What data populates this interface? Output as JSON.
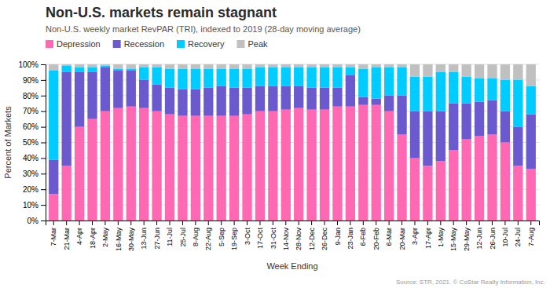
{
  "chart_data": {
    "type": "bar",
    "stacked": true,
    "title": "Non-U.S. markets remain stagnant",
    "subtitle": "Non-U.S. weekly market RevPAR (TRI), indexed to 2019 (28-day moving average)",
    "x_label": "Week Ending",
    "y_label": "Percent of Markets",
    "annotations": [
      "Source: STR, 2021. © CoStar Realty Information, Inc."
    ],
    "categories": [
      "7-Mar",
      "21-Mar",
      "4-Apr",
      "18-Apr",
      "2-May",
      "16-May",
      "30-May",
      "13-Jun",
      "27-Jun",
      "11-Jul",
      "25-Jul",
      "8-Aug",
      "22-Aug",
      "5-Sep",
      "19-Sep",
      "3-Oct",
      "17-Oct",
      "31-Oct",
      "14-Nov",
      "28-Nov",
      "12-Dec",
      "26-Dec",
      "9-Jan",
      "23-Jan",
      "6-Feb",
      "20-Feb",
      "6-Mar",
      "20-Mar",
      "3-Apr",
      "17-Apr",
      "1-May",
      "15-May",
      "29-May",
      "12-Jun",
      "26-Jun",
      "10-Jul",
      "24-Jul",
      "7-Aug"
    ],
    "series": [
      {
        "name": "Depression",
        "color": "#FF69B4",
        "values": [
          17,
          35,
          60,
          65,
          70,
          72,
          73,
          72,
          70,
          68,
          67,
          67,
          67,
          67,
          67,
          68,
          70,
          70,
          71,
          72,
          71,
          71,
          73,
          73,
          74,
          74,
          70,
          55,
          40,
          35,
          38,
          45,
          52,
          54,
          55,
          50,
          35,
          33
        ]
      },
      {
        "name": "Recession",
        "color": "#6A5ACD",
        "values": [
          22,
          60,
          35,
          30,
          28,
          24,
          23,
          18,
          17,
          17,
          17,
          17,
          18,
          19,
          18,
          17,
          16,
          16,
          15,
          14,
          14,
          14,
          12,
          20,
          5,
          4,
          10,
          25,
          30,
          35,
          32,
          30,
          23,
          22,
          22,
          20,
          25,
          35
        ]
      },
      {
        "name": "Recovery",
        "color": "#00CCFF",
        "values": [
          57,
          4,
          3,
          3,
          1,
          1,
          1,
          8,
          11,
          12,
          13,
          13,
          12,
          11,
          12,
          12,
          12,
          12,
          12,
          12,
          13,
          13,
          13,
          5,
          18,
          20,
          18,
          18,
          22,
          22,
          25,
          20,
          17,
          15,
          14,
          20,
          30,
          18
        ]
      },
      {
        "name": "Peak",
        "color": "#C0C0C0",
        "values": [
          4,
          1,
          2,
          2,
          1,
          3,
          3,
          2,
          2,
          3,
          3,
          3,
          3,
          3,
          3,
          3,
          2,
          2,
          2,
          2,
          2,
          2,
          2,
          2,
          3,
          2,
          2,
          2,
          8,
          8,
          5,
          5,
          8,
          9,
          9,
          10,
          10,
          14
        ]
      }
    ],
    "ylim": [
      0,
      100
    ],
    "yticks": [
      {
        "value": 0,
        "label": "0%"
      },
      {
        "value": 10,
        "label": "10%"
      },
      {
        "value": 20,
        "label": "20%"
      },
      {
        "value": 30,
        "label": "30%"
      },
      {
        "value": 40,
        "label": "40%"
      },
      {
        "value": 50,
        "label": "50%"
      },
      {
        "value": 60,
        "label": "60%"
      },
      {
        "value": 70,
        "label": "70%"
      },
      {
        "value": 80,
        "label": "80%"
      },
      {
        "value": 90,
        "label": "90%"
      },
      {
        "value": 100,
        "label": "100%"
      }
    ],
    "grid": true
  }
}
